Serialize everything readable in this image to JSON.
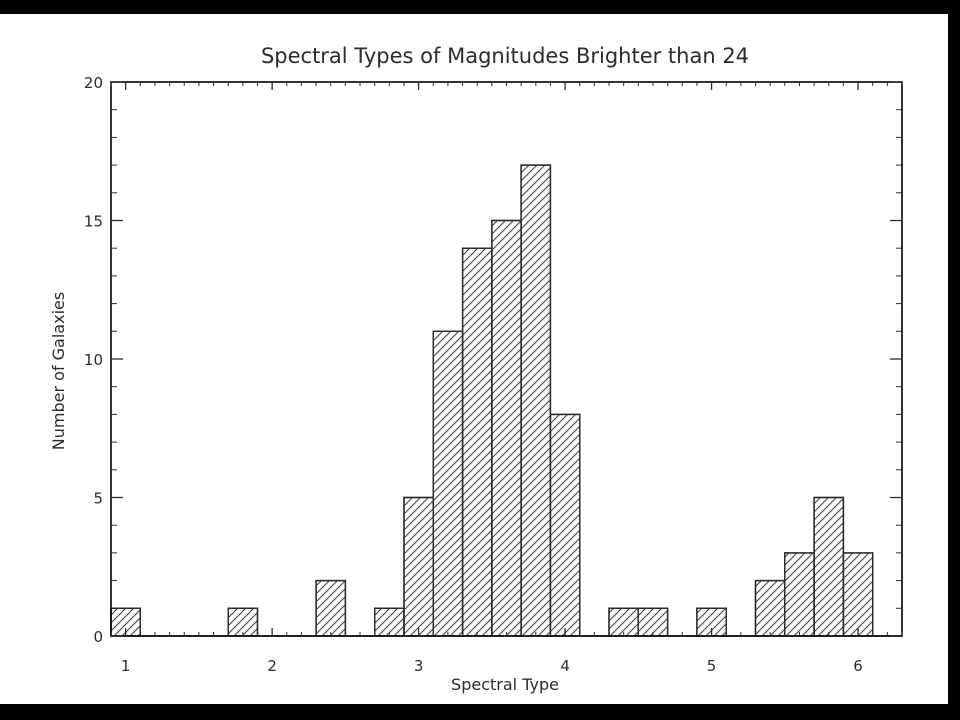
{
  "chart_data": {
    "type": "bar",
    "title": "Spectral Types of Magnitudes Brighter than 24",
    "xlabel": "Spectral Type",
    "ylabel": "Number of Galaxies",
    "xlim": [
      0.9,
      6.3
    ],
    "ylim": [
      0,
      20
    ],
    "bin_width": 0.2,
    "xticks": [
      1,
      2,
      3,
      4,
      5,
      6
    ],
    "yticks": [
      0,
      5,
      10,
      15,
      20
    ],
    "bars": [
      {
        "x": 1.0,
        "count": 1
      },
      {
        "x": 1.8,
        "count": 1
      },
      {
        "x": 2.4,
        "count": 2
      },
      {
        "x": 2.8,
        "count": 1
      },
      {
        "x": 3.0,
        "count": 5
      },
      {
        "x": 3.2,
        "count": 11
      },
      {
        "x": 3.4,
        "count": 14
      },
      {
        "x": 3.6,
        "count": 15
      },
      {
        "x": 3.8,
        "count": 17
      },
      {
        "x": 4.0,
        "count": 8
      },
      {
        "x": 4.4,
        "count": 1
      },
      {
        "x": 4.6,
        "count": 1
      },
      {
        "x": 5.0,
        "count": 1
      },
      {
        "x": 5.4,
        "count": 2
      },
      {
        "x": 5.6,
        "count": 3
      },
      {
        "x": 5.8,
        "count": 5
      },
      {
        "x": 6.0,
        "count": 3
      }
    ],
    "fill": "diagonal hatch",
    "grid": false,
    "colors": {
      "ink": "#2b2b2b",
      "background": "#ffffff",
      "frame": "#000000"
    }
  }
}
